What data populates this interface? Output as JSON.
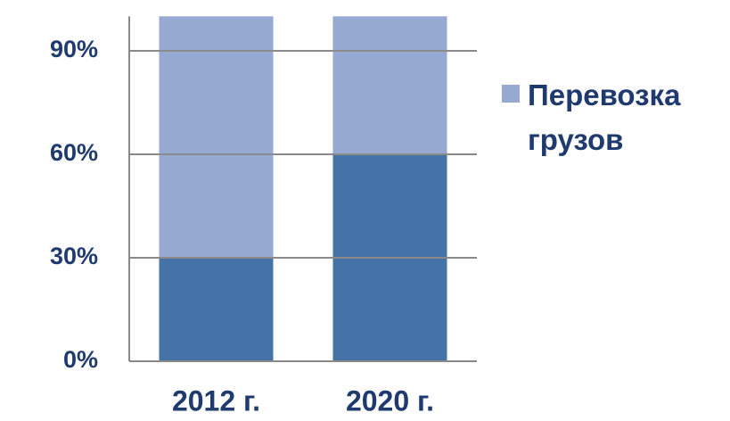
{
  "chart_data": {
    "type": "stacked-bar",
    "categories": [
      "2012 г.",
      "2020 г."
    ],
    "series": [
      {
        "color": "#4673a7",
        "values": [
          30,
          60
        ]
      },
      {
        "name": "Перевозка грузов",
        "color": "#95a9d1",
        "values": [
          70,
          40
        ]
      }
    ],
    "ylim": [
      0,
      100
    ],
    "yticks": [
      {
        "value": 0,
        "label": "0%"
      },
      {
        "value": 30,
        "label": "30%"
      },
      {
        "value": 60,
        "label": "60%"
      },
      {
        "value": 90,
        "label": "90%"
      }
    ],
    "grid": true,
    "legend": "right"
  }
}
